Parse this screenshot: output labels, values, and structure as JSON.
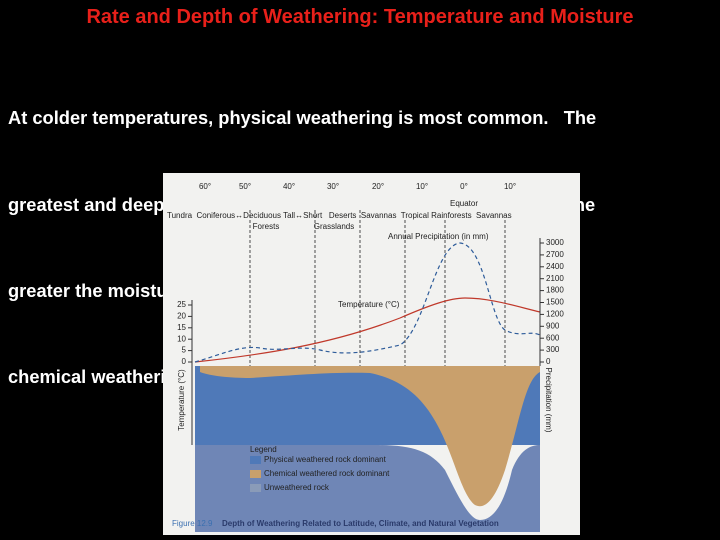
{
  "title": "Rate and Depth of Weathering: Temperature and Moisture",
  "body_lines": [
    "At colder temperatures, physical weathering is most common.   The",
    "greatest and deepest weathering takes place in forest biomes.   The",
    "greater the moisture and temperature, the greater and deeper the",
    "chemical weathering of rock substrates."
  ],
  "figure": {
    "latitudes": [
      "60°",
      "50°",
      "40°",
      "30°",
      "20°",
      "10°",
      "0°",
      "10°"
    ],
    "equator": "Equator",
    "biomes_row1": "Tundra  Coniferous↔Deciduous Tall↔Short   Deserts  Savannas  Tropical Rainforests  Savannas",
    "biomes_row2": [
      "Forests",
      "Grasslands"
    ],
    "precipitation_curve_label": "Annual Precipitation (in mm)",
    "temperature_curve_label": "Temperature (°C)",
    "temperature_axis": {
      "label": "Temperature (°C)",
      "ylim": [
        0,
        25
      ],
      "yticks": [
        0,
        5,
        10,
        15,
        20,
        25
      ]
    },
    "precipitation_axis": {
      "label": "Precipitation (mm)",
      "ylim": [
        0,
        3000
      ],
      "yticks": [
        0,
        300,
        600,
        900,
        1200,
        1500,
        1800,
        2100,
        2400,
        2700,
        3000
      ]
    },
    "legend": {
      "title": "Legend",
      "items": [
        "Physical weathered rock dominant",
        "Chemical weathered rock dominant",
        "Unweathered rock"
      ]
    },
    "caption_number": "Figure 12.9",
    "caption": "Depth of Weathering Related to Latitude, Climate, and Natural Vegetation"
  }
}
